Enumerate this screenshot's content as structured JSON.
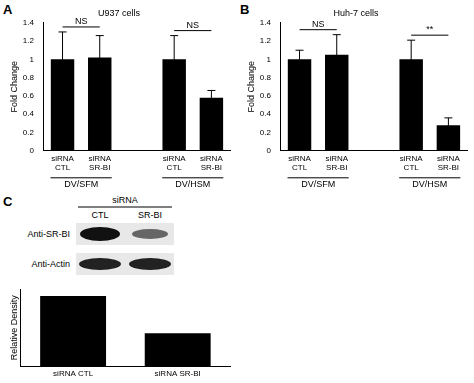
{
  "panel_labels": [
    "A",
    "B",
    "C"
  ],
  "chart_data": [
    {
      "type": "bar",
      "title": "U937 cells",
      "y_label": "Fold Change",
      "categories": [
        [
          "siRNA",
          "CTL"
        ],
        [
          "siRNA",
          "SR-BI"
        ],
        null,
        [
          "siRNA",
          "CTL"
        ],
        [
          "siRNA",
          "SR-BI"
        ]
      ],
      "values": [
        1.0,
        1.02,
        null,
        1.0,
        0.58
      ],
      "errors": [
        0.3,
        0.24,
        null,
        0.26,
        0.08
      ],
      "color": "#000000",
      "ylim": [
        0,
        1.4
      ],
      "yticks": [
        0,
        0.2,
        0.4,
        0.6,
        0.8,
        1,
        1.2,
        1.4
      ],
      "grid": false,
      "groups": [
        {
          "label": "DV/SFM",
          "from": 0,
          "to": 1
        },
        {
          "label": "DV/HSM",
          "from": 3,
          "to": 4
        }
      ],
      "annotations": [
        {
          "text": "NS",
          "from": 0,
          "to": 1
        },
        {
          "text": "NS",
          "from": 3,
          "to": 4
        }
      ]
    },
    {
      "type": "bar",
      "title": "Huh-7 cells",
      "y_label": "Fold Change",
      "categories": [
        [
          "siRNA",
          "CTL"
        ],
        [
          "siRNA",
          "SR-BI"
        ],
        null,
        [
          "siRNA",
          "CTL"
        ],
        [
          "siRNA",
          "SR-BI"
        ]
      ],
      "values": [
        1.0,
        1.05,
        null,
        1.0,
        0.28
      ],
      "errors": [
        0.1,
        0.22,
        null,
        0.21,
        0.08
      ],
      "color": "#000000",
      "ylim": [
        0,
        1.4
      ],
      "yticks": [
        0,
        0.2,
        0.4,
        0.6,
        0.8,
        1,
        1.2,
        1.4
      ],
      "grid": false,
      "groups": [
        {
          "label": "DV/SFM",
          "from": 0,
          "to": 1
        },
        {
          "label": "DV/HSM",
          "from": 3,
          "to": 4
        }
      ],
      "annotations": [
        {
          "text": "NS",
          "from": 0,
          "to": 1
        },
        {
          "text": "**",
          "from": 3,
          "to": 4
        }
      ]
    },
    {
      "type": "bar",
      "y_label": "Relative Density",
      "categories": [
        "siRNA CTL",
        "siRNA SR-BI"
      ],
      "values": [
        1,
        0.47
      ],
      "color": "#000000",
      "ylim": [
        0,
        1.1
      ],
      "grid": false,
      "tick_labels": "x"
    }
  ],
  "blot": {
    "header": "siRNA",
    "columns": [
      "CTL",
      "SR-BI"
    ],
    "rows": [
      "Anti-SR-BI",
      "Anti-Actin"
    ]
  }
}
